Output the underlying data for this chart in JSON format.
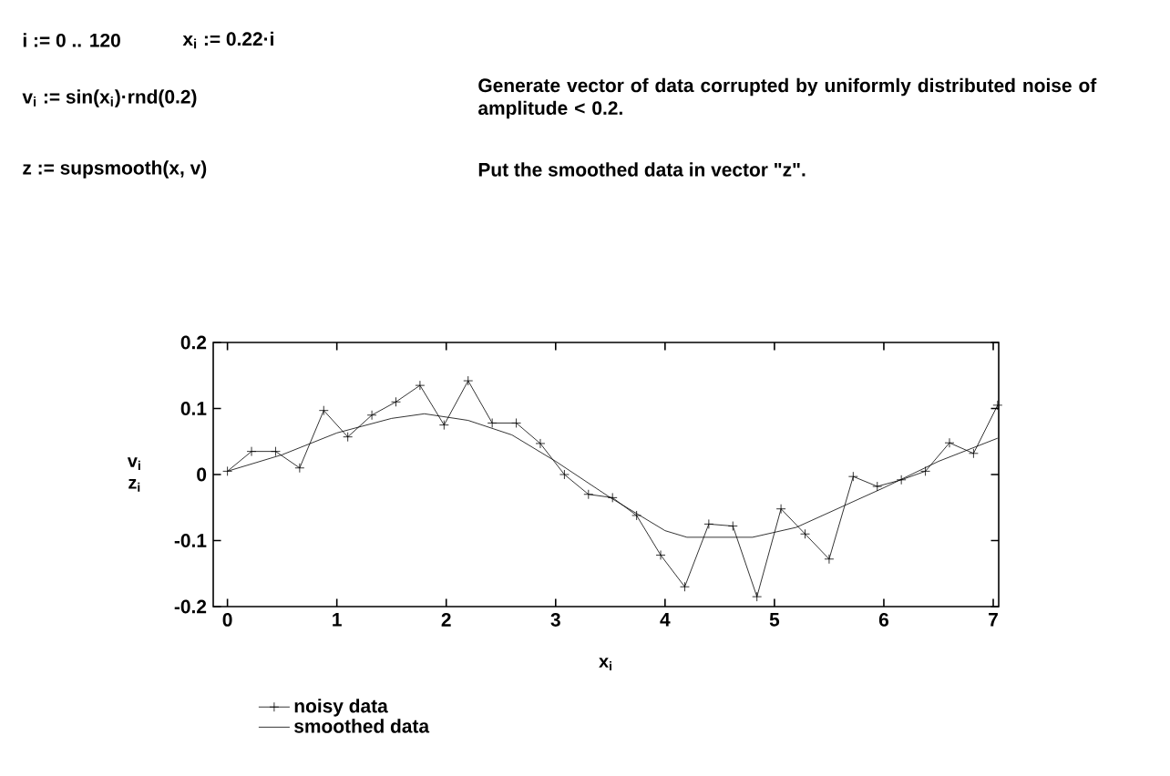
{
  "chart_data": {
    "type": "line",
    "xlabel": "x$_{i}$",
    "ylabel": "v$_{i}$ z$_{i}$",
    "annotations": [
      "i := 0 .. 120",
      "x$_{i}$ := 0.22·i",
      "v$_{i}$ := sin(x$_{i}$)·rnd(0.2)",
      "Generate vector of data corrupted by uniformly distributed noise of amplitude < 0.2.",
      "z := supsmooth(x, v)",
      "Put the smoothed data in vector \"z\"."
    ],
    "series": [
      {
        "name": "noisy data",
        "color": "#000000",
        "marker": "cross",
        "x": [
          0,
          0.22,
          0.44,
          0.66,
          0.88,
          1.1,
          1.32,
          1.54,
          1.76,
          1.98,
          2.2,
          2.42,
          2.64,
          2.86,
          3.08,
          3.3,
          3.52,
          3.74,
          3.96,
          4.18,
          4.4,
          4.62,
          4.84,
          5.06,
          5.28,
          5.5,
          5.72,
          5.94,
          6.16,
          6.38,
          6.6,
          6.82,
          7.04
        ],
        "values": [
          0.005,
          0.035,
          0.035,
          0.01,
          0.097,
          0.057,
          0.09,
          0.11,
          0.135,
          0.075,
          0.142,
          0.078,
          0.078,
          0.047,
          0.0,
          -0.03,
          -0.035,
          -0.062,
          -0.122,
          -0.17,
          -0.075,
          -0.078,
          -0.185,
          -0.052,
          -0.09,
          -0.128,
          -0.003,
          -0.018,
          -0.008,
          0.005,
          0.048,
          0.032,
          0.105
        ]
      },
      {
        "name": "smoothed data",
        "color": "#000000",
        "marker": "none",
        "x": [
          0,
          0.5,
          1.0,
          1.5,
          1.8,
          2.2,
          2.6,
          3.0,
          3.5,
          4.0,
          4.2,
          4.8,
          5.2,
          5.6,
          6.0,
          6.5,
          7.04
        ],
        "values": [
          0.005,
          0.03,
          0.063,
          0.085,
          0.092,
          0.082,
          0.06,
          0.02,
          -0.035,
          -0.085,
          -0.095,
          -0.095,
          -0.08,
          -0.05,
          -0.02,
          0.02,
          0.055
        ]
      }
    ],
    "xlim": [
      -0.13,
      7.05
    ],
    "ylim": [
      -0.2,
      0.2
    ],
    "xticks": [
      0,
      1,
      2,
      3,
      4,
      5,
      6,
      7
    ],
    "yticks": [
      -0.2,
      -0.1,
      0,
      0.1,
      0.2
    ],
    "grid": false,
    "legend": "bottom left"
  }
}
